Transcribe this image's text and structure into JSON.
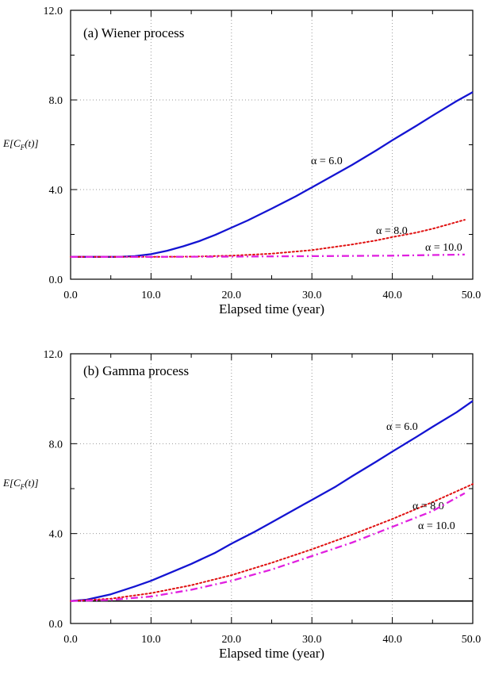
{
  "chart_data": [
    {
      "type": "line",
      "title": "(a) Wiener process",
      "xlabel": "Elapsed time (year)",
      "ylabel": "E[C_F(t)]",
      "xlim": [
        0,
        50
      ],
      "ylim": [
        0,
        12
      ],
      "x_ticks": [
        "0.0",
        "10.0",
        "20.0",
        "30.0",
        "40.0",
        "50.0"
      ],
      "y_ticks": [
        "0.0",
        "4.0",
        "8.0",
        "12.0"
      ],
      "grid": true,
      "series": [
        {
          "name": "α = 6.0",
          "color": "#1414d2",
          "style": "solid",
          "x": [
            0,
            3,
            6,
            8,
            10,
            12,
            14,
            16,
            18,
            20,
            22,
            25,
            28,
            30,
            33,
            35,
            38,
            40,
            43,
            45,
            48,
            50
          ],
          "y": [
            1.0,
            1.0,
            1.0,
            1.03,
            1.12,
            1.27,
            1.47,
            1.7,
            1.98,
            2.3,
            2.62,
            3.15,
            3.7,
            4.1,
            4.7,
            5.1,
            5.75,
            6.2,
            6.85,
            7.3,
            7.95,
            8.35
          ]
        },
        {
          "name": "α = 8.0",
          "color": "#e01010",
          "style": "dotted",
          "x": [
            0,
            10,
            15,
            20,
            25,
            30,
            35,
            38,
            40,
            43,
            45,
            47,
            49
          ],
          "y": [
            1.0,
            1.0,
            1.01,
            1.05,
            1.14,
            1.3,
            1.55,
            1.73,
            1.88,
            2.08,
            2.25,
            2.45,
            2.65
          ]
        },
        {
          "name": "α = 10.0",
          "color": "#e020e0",
          "style": "dashdot",
          "x": [
            0,
            10,
            20,
            30,
            40,
            49
          ],
          "y": [
            1.0,
            1.0,
            1.01,
            1.03,
            1.05,
            1.1
          ]
        }
      ]
    },
    {
      "type": "line",
      "title": "(b) Gamma process",
      "xlabel": "Elapsed time (year)",
      "ylabel": "E[C_F(t)]",
      "xlim": [
        0,
        50
      ],
      "ylim": [
        0,
        12
      ],
      "x_ticks": [
        "0.0",
        "10.0",
        "20.0",
        "30.0",
        "40.0",
        "50.0"
      ],
      "y_ticks": [
        "0.0",
        "4.0",
        "8.0",
        "12.0"
      ],
      "grid": true,
      "reference_line": {
        "y": 1.0,
        "color": "#000000"
      },
      "series": [
        {
          "name": "α = 6.0",
          "color": "#1414d2",
          "style": "solid",
          "x": [
            0,
            2,
            5,
            8,
            10,
            12,
            15,
            18,
            20,
            23,
            25,
            28,
            30,
            33,
            35,
            38,
            40,
            43,
            45,
            48,
            50
          ],
          "y": [
            1.0,
            1.06,
            1.3,
            1.65,
            1.9,
            2.2,
            2.65,
            3.15,
            3.55,
            4.1,
            4.5,
            5.1,
            5.5,
            6.1,
            6.55,
            7.2,
            7.65,
            8.3,
            8.75,
            9.4,
            9.9
          ]
        },
        {
          "name": "α = 8.0",
          "color": "#e01010",
          "style": "dotted",
          "x": [
            0,
            5,
            10,
            15,
            20,
            25,
            30,
            35,
            40,
            45,
            50
          ],
          "y": [
            1.0,
            1.1,
            1.35,
            1.7,
            2.15,
            2.7,
            3.3,
            3.95,
            4.65,
            5.4,
            6.2
          ]
        },
        {
          "name": "α = 10.0",
          "color": "#e020e0",
          "style": "dashdot",
          "x": [
            0,
            5,
            10,
            15,
            20,
            25,
            30,
            35,
            40,
            45,
            49
          ],
          "y": [
            1.0,
            1.05,
            1.2,
            1.5,
            1.9,
            2.4,
            3.0,
            3.6,
            4.3,
            5.0,
            5.8
          ]
        }
      ]
    }
  ]
}
